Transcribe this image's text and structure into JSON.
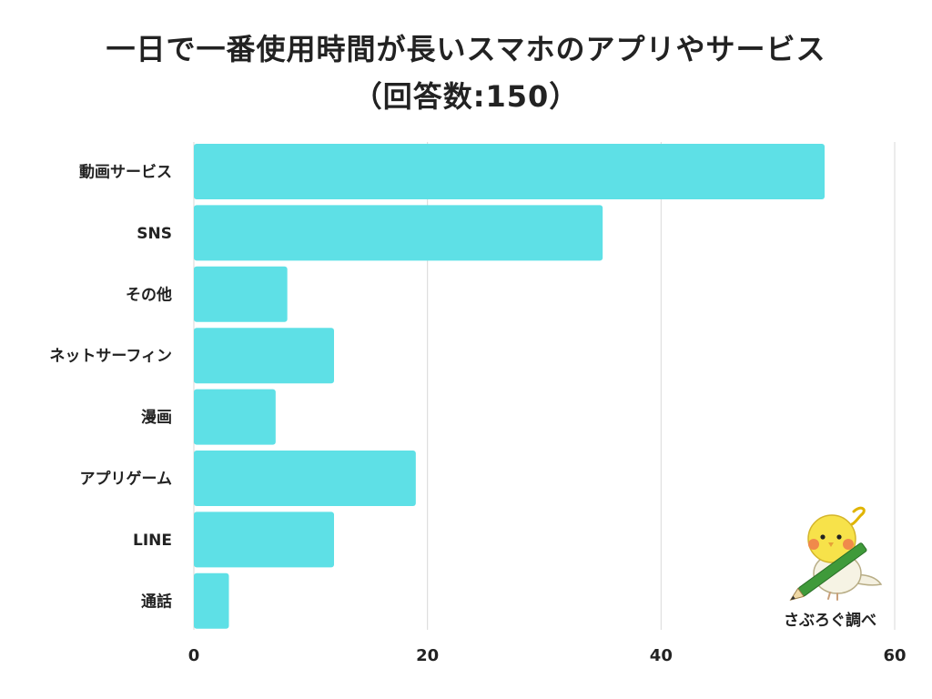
{
  "title": {
    "line1": "一日で一番使用時間が長いスマホのアプリやサービス",
    "line2": "（回答数:150）"
  },
  "colors": {
    "bar": "#5ee0e6",
    "grid": "#d9d9d9",
    "text": "#222222",
    "mascot_yellow": "#f7e24a",
    "pencil_green": "#3f9a3a"
  },
  "chart_data": {
    "type": "bar",
    "orientation": "horizontal",
    "categories": [
      "動画サービス",
      "SNS",
      "その他",
      "ネットサーフィン",
      "漫画",
      "アプリゲーム",
      "LINE",
      "通話"
    ],
    "values": [
      54,
      35,
      8,
      12,
      7,
      19,
      12,
      3
    ],
    "xlim": [
      0,
      60
    ],
    "xticks": [
      0,
      20,
      40,
      60
    ],
    "grid": "vertical",
    "legend": "none"
  },
  "badge": {
    "label": "さぶろぐ調べ",
    "icon": "bird-with-pencil-icon"
  }
}
